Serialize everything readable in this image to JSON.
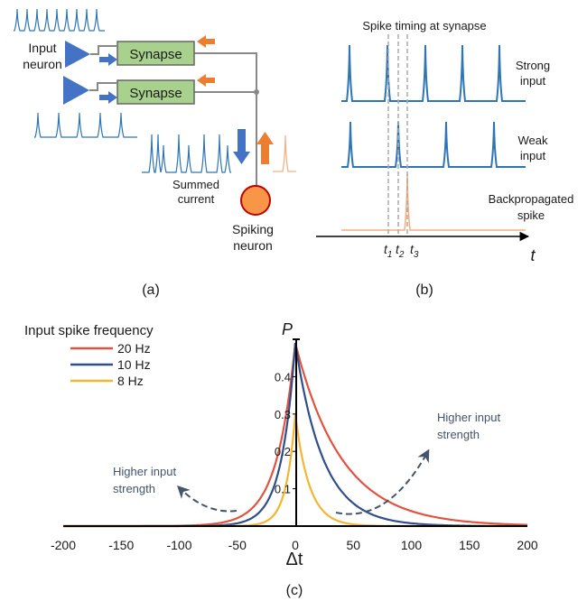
{
  "panel_a": {
    "input_neuron_label": [
      "Input",
      "neuron"
    ],
    "synapse_labels": [
      "Synapse",
      "Synapse"
    ],
    "summed_current_label": [
      "Summed",
      "current"
    ],
    "spiking_neuron_label": [
      "Spiking",
      "neuron"
    ],
    "caption": "(a)"
  },
  "panel_b": {
    "title": "Spike timing at synapse",
    "row_labels": [
      [
        "Strong",
        "input"
      ],
      [
        "Weak",
        "input"
      ],
      [
        "Backpropagated",
        "spike"
      ]
    ],
    "time_markers": [
      {
        "name": "t",
        "sub": "1"
      },
      {
        "name": "t",
        "sub": "2"
      },
      {
        "name": "t",
        "sub": "3"
      }
    ],
    "axis_label": "t",
    "caption": "(b)"
  },
  "panel_c": {
    "caption": "(c)",
    "annotation_left": [
      "Higher input",
      "strength"
    ],
    "annotation_right": [
      "Higher input",
      "strength"
    ]
  },
  "colors": {
    "blue_neuron": "#4472c4",
    "synapse_fill": "#a9d18e",
    "spike_blue": "#2e75b6",
    "backprop_orange": "#f4b183",
    "arrow_orange": "#ed7d31",
    "spiking_neuron": "#f79646",
    "curve_20hz": "#e0533f",
    "curve_10hz": "#2f4e8c",
    "curve_8hz": "#f2b632",
    "annotation": "#44546a"
  },
  "chart_data": {
    "type": "line",
    "title": "",
    "legend_title": "Input spike frequency",
    "legend_position": "top-left",
    "xlabel": "Δt",
    "ylabel": "P",
    "xlim": [
      -200,
      200
    ],
    "ylim": [
      0,
      0.5
    ],
    "xticks": [
      -200,
      -150,
      -100,
      -50,
      0,
      50,
      100,
      150,
      200
    ],
    "yticks": [
      0.1,
      0.2,
      0.3,
      0.4
    ],
    "grid": false,
    "series": [
      {
        "name": "20 Hz",
        "peak": 0.49,
        "tau_pre": 16,
        "tau_post": 40,
        "color": "#e0533f"
      },
      {
        "name": "10 Hz",
        "peak": 0.49,
        "tau_pre": 12,
        "tau_post": 24,
        "color": "#2f4e8c"
      },
      {
        "name": "8 Hz",
        "peak": 0.3,
        "tau_pre": 8,
        "tau_post": 12,
        "color": "#f2b632"
      }
    ]
  }
}
